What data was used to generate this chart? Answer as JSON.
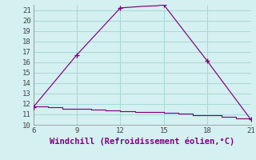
{
  "xlabel": "Windchill (Refroidissement éolien,°C)",
  "background_color": "#d4f0f0",
  "grid_color": "#a8d8d8",
  "line_color": "#800080",
  "upper_x": [
    6,
    9,
    12,
    12.5,
    13,
    13.5,
    14,
    14.5,
    15,
    18,
    21
  ],
  "upper_y": [
    11.7,
    16.7,
    21.2,
    21.25,
    21.3,
    21.35,
    21.38,
    21.4,
    21.5,
    16.1,
    10.5
  ],
  "upper_marker_x": [
    6,
    9,
    12,
    15,
    18,
    21
  ],
  "upper_marker_y": [
    11.7,
    16.7,
    21.2,
    21.5,
    16.1,
    10.5
  ],
  "lower_x": [
    6,
    7,
    8,
    9,
    10,
    11,
    12,
    13,
    14,
    15,
    16,
    17,
    18,
    19,
    20,
    21
  ],
  "lower_y": [
    11.75,
    11.65,
    11.55,
    11.5,
    11.45,
    11.4,
    11.3,
    11.25,
    11.2,
    11.15,
    11.05,
    10.95,
    10.9,
    10.8,
    10.65,
    10.5
  ],
  "xlim": [
    6,
    21
  ],
  "ylim": [
    10,
    21.5
  ],
  "xticks": [
    6,
    9,
    12,
    15,
    18,
    21
  ],
  "yticks": [
    10,
    11,
    12,
    13,
    14,
    15,
    16,
    17,
    18,
    19,
    20,
    21
  ],
  "tick_fontsize": 6.5,
  "xlabel_fontsize": 7.5
}
